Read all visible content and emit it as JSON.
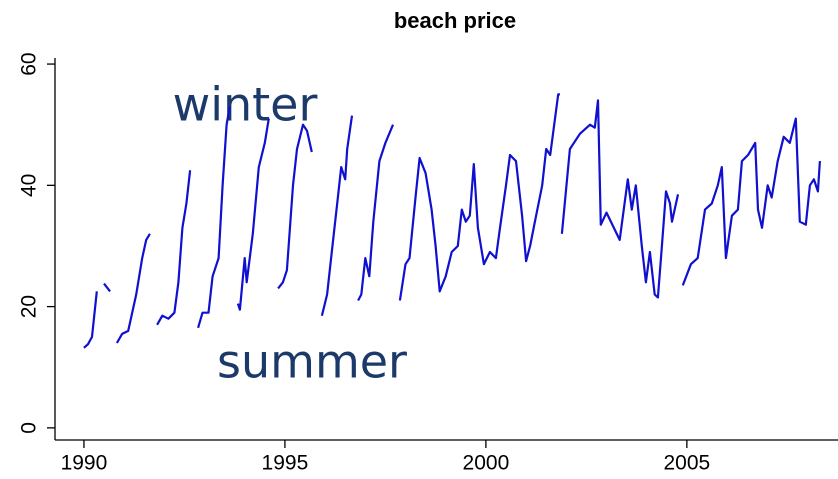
{
  "chart_data": {
    "type": "line",
    "title": "beach price",
    "annotations": [
      "winter",
      "summer"
    ],
    "xlim": [
      1989.28,
      2008.76
    ],
    "ylim": [
      -2,
      61
    ],
    "xticks": [
      1990,
      1995,
      2000,
      2005
    ],
    "yticks": [
      0,
      20,
      40,
      60
    ],
    "series": [
      {
        "name": "beach price",
        "color": "#1010d0",
        "x": [
          1990.0,
          1990.1,
          1990.2,
          1990.32,
          null,
          1990.5,
          1990.65,
          null,
          1990.82,
          1990.95,
          1991.1,
          1991.3,
          1991.45,
          1991.55,
          1991.64,
          null,
          1991.82,
          1991.95,
          1992.1,
          1992.25,
          1992.35,
          1992.45,
          1992.55,
          1992.64,
          null,
          1992.84,
          1992.95,
          1993.1,
          1993.2,
          1993.35,
          1993.45,
          1993.55,
          1993.63,
          null,
          1993.83,
          1993.88,
          1994.0,
          1994.05,
          1994.2,
          1994.35,
          1994.5,
          1994.6,
          null,
          1994.83,
          1994.95,
          1995.05,
          1995.2,
          1995.3,
          1995.45,
          1995.55,
          1995.67,
          null,
          1995.92,
          1996.05,
          1996.15,
          1996.3,
          1996.4,
          1996.5,
          1996.55,
          1996.67,
          null,
          1996.82,
          1996.9,
          1997.0,
          1997.1,
          1997.2,
          1997.35,
          1997.5,
          1997.69,
          null,
          1997.86,
          1998.0,
          1998.1,
          1998.25,
          1998.35,
          1998.5,
          1998.65,
          1998.75,
          1998.85,
          1999.0,
          1999.15,
          1999.3,
          1999.4,
          1999.5,
          1999.6,
          1999.7,
          1999.8,
          1999.95,
          2000.1,
          2000.25,
          2000.35,
          2000.5,
          2000.6,
          2000.75,
          2000.9,
          2001.0,
          2001.1,
          2001.25,
          2001.4,
          2001.5,
          2001.6,
          2001.7,
          2001.8,
          2001.84,
          null,
          2001.89,
          2002.09,
          2002.34,
          2002.59,
          2002.71,
          2002.79,
          2002.86,
          2003.0,
          2003.33,
          2003.53,
          2003.63,
          2003.73,
          2003.88,
          2003.98,
          2004.08,
          2004.2,
          2004.28,
          2004.38,
          2004.48,
          2004.58,
          2004.63,
          2004.78,
          null,
          2004.9,
          2005.1,
          2005.27,
          2005.45,
          2005.62,
          2005.77,
          2005.87,
          2005.97,
          2006.12,
          2006.27,
          2006.37,
          2006.52,
          2006.7,
          2006.77,
          2006.87,
          2007.01,
          2007.11,
          2007.26,
          2007.41,
          2007.56,
          2007.71,
          2007.81,
          2007.96,
          2008.06,
          2008.16,
          2008.26,
          2008.31
        ],
        "values": [
          13.2,
          13.8,
          15,
          22.5,
          null,
          23.8,
          22.5,
          null,
          14,
          15.5,
          16,
          22,
          28,
          31,
          32,
          null,
          17,
          18.5,
          18,
          19,
          24,
          33,
          37,
          42.5,
          null,
          16.5,
          19,
          19,
          25,
          28,
          40,
          50,
          53,
          null,
          20.5,
          19.5,
          28,
          24,
          32,
          43,
          47,
          51,
          null,
          23,
          24,
          26,
          40,
          46,
          50,
          49,
          45.5,
          null,
          18.5,
          22,
          28,
          37,
          43,
          41,
          46,
          51.5,
          null,
          21,
          22,
          28,
          25,
          34,
          44,
          47,
          50,
          null,
          21,
          27,
          28,
          38,
          44.5,
          42,
          36,
          30,
          22.5,
          25,
          29,
          30,
          36,
          34,
          35,
          43.5,
          33,
          27,
          29,
          28,
          33,
          40,
          45,
          44,
          35,
          27.5,
          30,
          35,
          40,
          46,
          45,
          50,
          55,
          55,
          null,
          32,
          46,
          48.5,
          50,
          49.5,
          54,
          33.5,
          35.5,
          31,
          41,
          36,
          40,
          30,
          24,
          29,
          22,
          21.5,
          30,
          39,
          37,
          34,
          38.5,
          null,
          23.5,
          27,
          28,
          36,
          37,
          40,
          43,
          28,
          35,
          36,
          44,
          45,
          47,
          36,
          33,
          40,
          38,
          44,
          48,
          47,
          51,
          34,
          33.5,
          40,
          41,
          39,
          44
        ]
      }
    ]
  }
}
